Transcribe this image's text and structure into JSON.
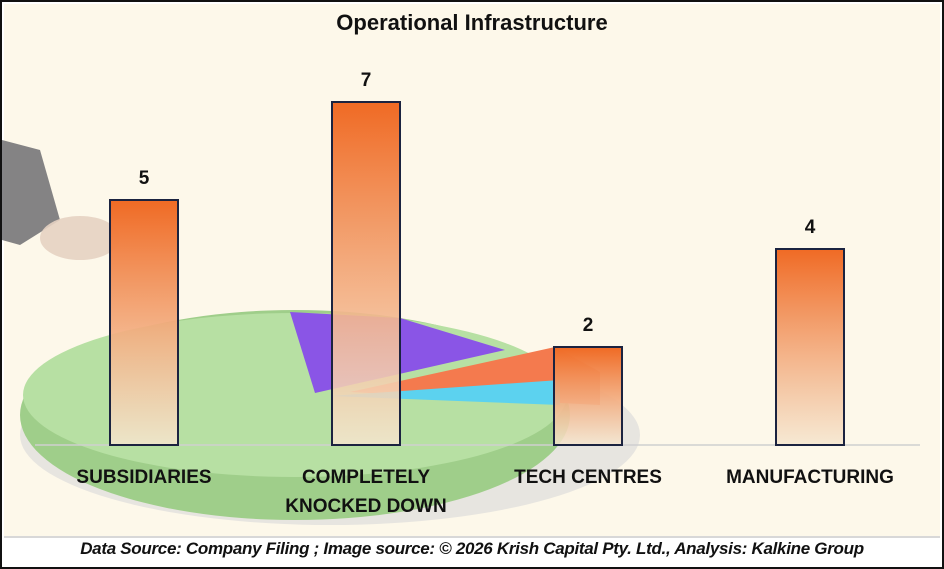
{
  "chart_data": {
    "type": "bar",
    "title": "Operational Infrastructure",
    "categories": [
      "SUBSIDIARIES",
      "COMPLETELY KNOCKED DOWN",
      "TECH CENTRES",
      "MANUFACTURING"
    ],
    "category_lines": [
      [
        "SUBSIDIARIES"
      ],
      [
        "COMPLETELY",
        "KNOCKED DOWN"
      ],
      [
        "TECH CENTRES"
      ],
      [
        "MANUFACTURING"
      ]
    ],
    "values": [
      5,
      7,
      2,
      4
    ],
    "xlabel": "",
    "ylabel": "",
    "ylim": [
      0,
      8
    ],
    "grid": false,
    "data_labels": true,
    "colors": {
      "bar_top": "#f06a24",
      "bar_bottom": "#f5e6cf",
      "bar_border": "#1b2340"
    }
  },
  "footer": "Data Source: Company Filing ; Image source: © 2026 Krish Capital Pty. Ltd., Analysis: Kalkine Group"
}
